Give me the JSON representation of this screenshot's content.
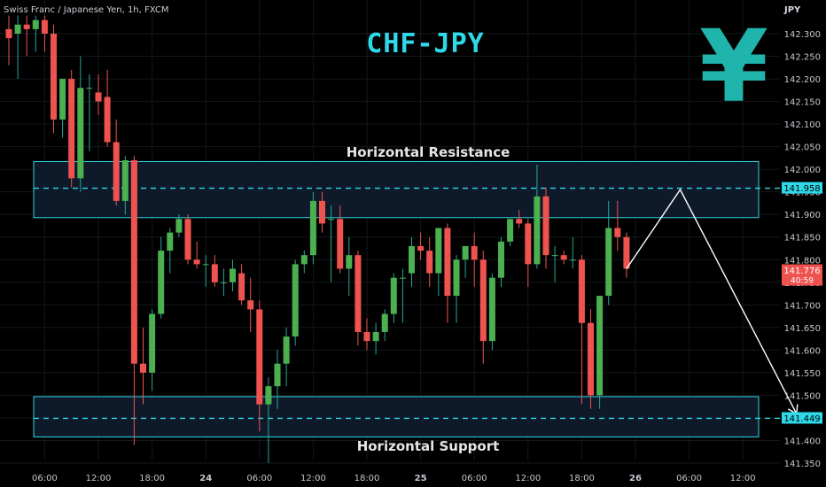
{
  "header": {
    "symbol_text": "Swiss Franc / Japanese Yen, 1h, FXCM",
    "currency": "JPY",
    "title": "CHF-JPY",
    "icon": "yen-sign-icon",
    "icon_glyph": "¥"
  },
  "zones": {
    "resistance_label": "Horizontal Resistance",
    "support_label": "Horizontal Support"
  },
  "chart_data": {
    "type": "candlestick",
    "ylim": [
      141.325,
      142.34
    ],
    "y_ticks": [
      "142.300",
      "142.250",
      "142.200",
      "142.150",
      "142.100",
      "142.050",
      "142.000",
      "141.950",
      "141.900",
      "141.850",
      "141.800",
      "141.750",
      "141.700",
      "141.650",
      "141.600",
      "141.550",
      "141.500",
      "141.450",
      "141.400",
      "141.350"
    ],
    "x_ticks": [
      {
        "label": "06:00",
        "index": 4
      },
      {
        "label": "12:00",
        "index": 10
      },
      {
        "label": "18:00",
        "index": 16
      },
      {
        "label": "24",
        "index": 22
      },
      {
        "label": "06:00",
        "index": 28
      },
      {
        "label": "12:00",
        "index": 34
      },
      {
        "label": "18:00",
        "index": 40
      },
      {
        "label": "25",
        "index": 46
      },
      {
        "label": "06:00",
        "index": 52
      },
      {
        "label": "12:00",
        "index": 58
      },
      {
        "label": "18:00",
        "index": 64
      },
      {
        "label": "26",
        "index": 70
      },
      {
        "label": "06:00",
        "index": 76
      },
      {
        "label": "12:00",
        "index": 82
      }
    ],
    "candles": [
      {
        "o": 142.31,
        "h": 142.34,
        "l": 142.23,
        "c": 142.29
      },
      {
        "o": 142.3,
        "h": 142.34,
        "l": 142.2,
        "c": 142.32
      },
      {
        "o": 142.32,
        "h": 142.34,
        "l": 142.25,
        "c": 142.31
      },
      {
        "o": 142.31,
        "h": 142.34,
        "l": 142.26,
        "c": 142.33
      },
      {
        "o": 142.33,
        "h": 142.34,
        "l": 142.26,
        "c": 142.3
      },
      {
        "o": 142.3,
        "h": 142.32,
        "l": 142.08,
        "c": 142.11
      },
      {
        "o": 142.11,
        "h": 142.2,
        "l": 142.07,
        "c": 142.2
      },
      {
        "o": 142.2,
        "h": 142.22,
        "l": 141.96,
        "c": 141.98
      },
      {
        "o": 141.98,
        "h": 142.25,
        "l": 141.95,
        "c": 142.18
      },
      {
        "o": 142.18,
        "h": 142.21,
        "l": 142.04,
        "c": 142.18
      },
      {
        "o": 142.17,
        "h": 142.21,
        "l": 142.12,
        "c": 142.15
      },
      {
        "o": 142.16,
        "h": 142.22,
        "l": 142.05,
        "c": 142.06
      },
      {
        "o": 142.06,
        "h": 142.11,
        "l": 141.92,
        "c": 141.93
      },
      {
        "o": 141.93,
        "h": 142.03,
        "l": 141.9,
        "c": 142.02
      },
      {
        "o": 142.02,
        "h": 142.03,
        "l": 141.39,
        "c": 141.57
      },
      {
        "o": 141.57,
        "h": 141.65,
        "l": 141.48,
        "c": 141.55
      },
      {
        "o": 141.55,
        "h": 141.69,
        "l": 141.51,
        "c": 141.68
      },
      {
        "o": 141.68,
        "h": 141.85,
        "l": 141.67,
        "c": 141.82
      },
      {
        "o": 141.82,
        "h": 141.87,
        "l": 141.77,
        "c": 141.86
      },
      {
        "o": 141.86,
        "h": 141.9,
        "l": 141.85,
        "c": 141.89
      },
      {
        "o": 141.89,
        "h": 141.9,
        "l": 141.79,
        "c": 141.8
      },
      {
        "o": 141.8,
        "h": 141.84,
        "l": 141.78,
        "c": 141.79
      },
      {
        "o": 141.79,
        "h": 141.81,
        "l": 141.74,
        "c": 141.79
      },
      {
        "o": 141.79,
        "h": 141.81,
        "l": 141.74,
        "c": 141.75
      },
      {
        "o": 141.75,
        "h": 141.78,
        "l": 141.72,
        "c": 141.75
      },
      {
        "o": 141.75,
        "h": 141.8,
        "l": 141.73,
        "c": 141.78
      },
      {
        "o": 141.77,
        "h": 141.79,
        "l": 141.7,
        "c": 141.71
      },
      {
        "o": 141.71,
        "h": 141.76,
        "l": 141.64,
        "c": 141.69
      },
      {
        "o": 141.69,
        "h": 141.71,
        "l": 141.42,
        "c": 141.48
      },
      {
        "o": 141.48,
        "h": 141.54,
        "l": 141.35,
        "c": 141.52
      },
      {
        "o": 141.52,
        "h": 141.6,
        "l": 141.47,
        "c": 141.57
      },
      {
        "o": 141.57,
        "h": 141.65,
        "l": 141.52,
        "c": 141.63
      },
      {
        "o": 141.63,
        "h": 141.8,
        "l": 141.61,
        "c": 141.79
      },
      {
        "o": 141.79,
        "h": 141.82,
        "l": 141.77,
        "c": 141.81
      },
      {
        "o": 141.81,
        "h": 141.95,
        "l": 141.79,
        "c": 141.93
      },
      {
        "o": 141.93,
        "h": 141.95,
        "l": 141.86,
        "c": 141.88
      },
      {
        "o": 141.89,
        "h": 141.92,
        "l": 141.75,
        "c": 141.89
      },
      {
        "o": 141.89,
        "h": 141.92,
        "l": 141.77,
        "c": 141.78
      },
      {
        "o": 141.78,
        "h": 141.85,
        "l": 141.72,
        "c": 141.81
      },
      {
        "o": 141.81,
        "h": 141.82,
        "l": 141.61,
        "c": 141.64
      },
      {
        "o": 141.64,
        "h": 141.67,
        "l": 141.6,
        "c": 141.62
      },
      {
        "o": 141.62,
        "h": 141.66,
        "l": 141.59,
        "c": 141.64
      },
      {
        "o": 141.64,
        "h": 141.69,
        "l": 141.62,
        "c": 141.68
      },
      {
        "o": 141.68,
        "h": 141.77,
        "l": 141.66,
        "c": 141.76
      },
      {
        "o": 141.76,
        "h": 141.78,
        "l": 141.66,
        "c": 141.76
      },
      {
        "o": 141.77,
        "h": 141.85,
        "l": 141.74,
        "c": 141.83
      },
      {
        "o": 141.83,
        "h": 141.86,
        "l": 141.8,
        "c": 141.82
      },
      {
        "o": 141.82,
        "h": 141.85,
        "l": 141.74,
        "c": 141.77
      },
      {
        "o": 141.77,
        "h": 141.87,
        "l": 141.72,
        "c": 141.87
      },
      {
        "o": 141.87,
        "h": 141.88,
        "l": 141.66,
        "c": 141.72
      },
      {
        "o": 141.72,
        "h": 141.81,
        "l": 141.66,
        "c": 141.8
      },
      {
        "o": 141.8,
        "h": 141.83,
        "l": 141.76,
        "c": 141.83
      },
      {
        "o": 141.83,
        "h": 141.86,
        "l": 141.74,
        "c": 141.8
      },
      {
        "o": 141.8,
        "h": 141.82,
        "l": 141.57,
        "c": 141.62
      },
      {
        "o": 141.62,
        "h": 141.77,
        "l": 141.6,
        "c": 141.76
      },
      {
        "o": 141.76,
        "h": 141.85,
        "l": 141.74,
        "c": 141.84
      },
      {
        "o": 141.84,
        "h": 141.89,
        "l": 141.83,
        "c": 141.89
      },
      {
        "o": 141.89,
        "h": 141.91,
        "l": 141.87,
        "c": 141.88
      },
      {
        "o": 141.88,
        "h": 141.89,
        "l": 141.74,
        "c": 141.79
      },
      {
        "o": 141.79,
        "h": 142.01,
        "l": 141.78,
        "c": 141.94
      },
      {
        "o": 141.94,
        "h": 141.96,
        "l": 141.78,
        "c": 141.81
      },
      {
        "o": 141.81,
        "h": 141.83,
        "l": 141.75,
        "c": 141.81
      },
      {
        "o": 141.81,
        "h": 141.82,
        "l": 141.79,
        "c": 141.8
      },
      {
        "o": 141.8,
        "h": 141.85,
        "l": 141.78,
        "c": 141.8
      },
      {
        "o": 141.8,
        "h": 141.81,
        "l": 141.48,
        "c": 141.66
      },
      {
        "o": 141.66,
        "h": 141.69,
        "l": 141.47,
        "c": 141.5
      },
      {
        "o": 141.5,
        "h": 141.72,
        "l": 141.47,
        "c": 141.72
      },
      {
        "o": 141.72,
        "h": 141.93,
        "l": 141.7,
        "c": 141.87
      },
      {
        "o": 141.87,
        "h": 141.93,
        "l": 141.82,
        "c": 141.85
      },
      {
        "o": 141.85,
        "h": 141.86,
        "l": 141.76,
        "c": 141.78
      }
    ],
    "resistance_zone": [
      141.893,
      142.017
    ],
    "resistance_line": 141.958,
    "support_zone": [
      141.408,
      141.497
    ],
    "support_line": 141.449,
    "projection": [
      {
        "index": 69,
        "value": 141.78
      },
      {
        "index": 75,
        "value": 141.955
      },
      {
        "index": 88,
        "value": 141.459
      }
    ],
    "price_labels": [
      {
        "value": 141.958,
        "text": "141.958",
        "kind": "resistance"
      },
      {
        "value": 141.776,
        "text": "141.776",
        "kind": "last",
        "sub": "40:59"
      },
      {
        "value": 141.449,
        "text": "141.449",
        "kind": "support"
      }
    ],
    "colors": {
      "up": "#26a69a",
      "up_body": "#4caf50",
      "down": "#ef5350",
      "zone_border": "#2fd9e8",
      "zone_fill": "#0e1a2a",
      "level_line": "#2fd9e8",
      "projection": "#ffffff",
      "label_bg": "#2fd9e8",
      "last_bg": "#ef5350"
    }
  }
}
